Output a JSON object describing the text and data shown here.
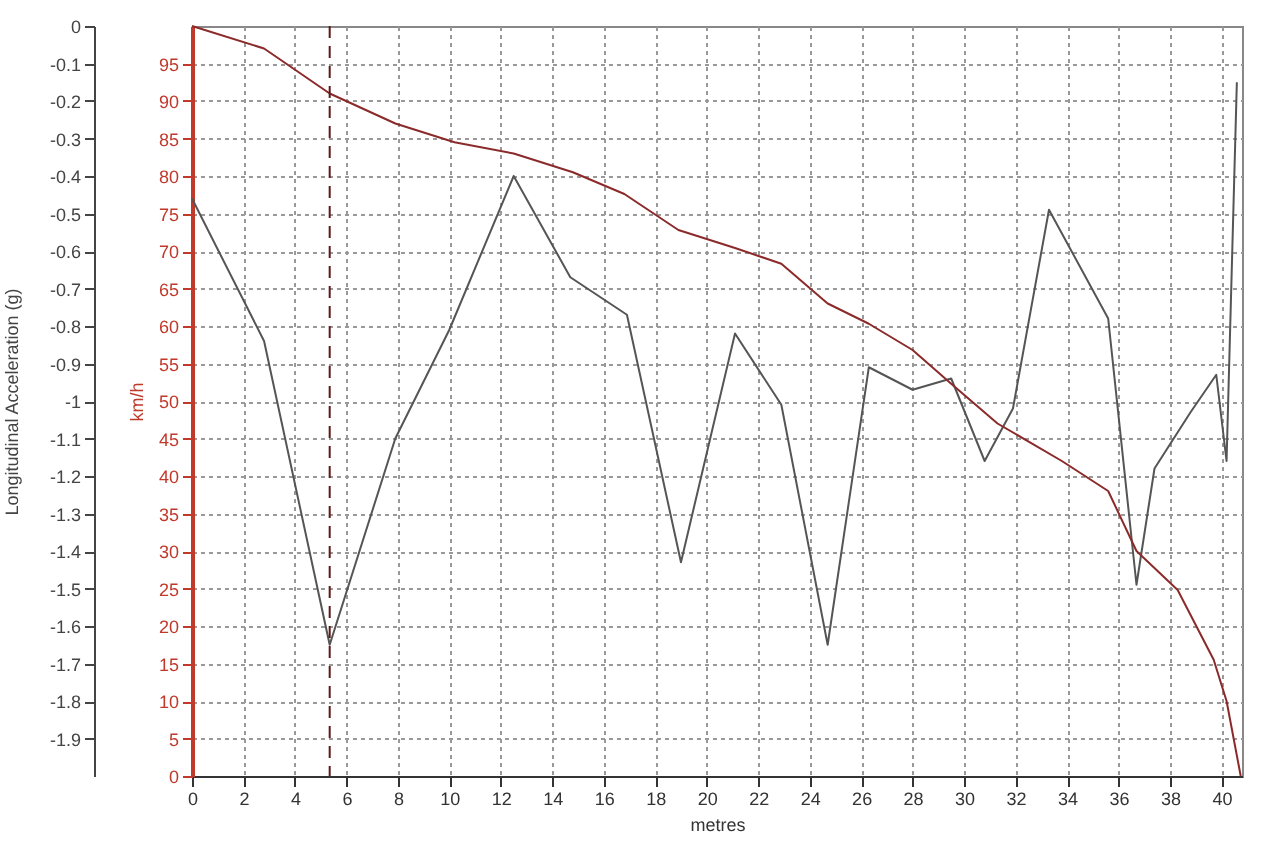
{
  "chart_data": {
    "type": "line",
    "xlabel": "metres",
    "ylabel": "Longitudinal Acceleration (g)",
    "y2label": "km/h",
    "xlim": [
      0,
      40.8
    ],
    "xticks": [
      0,
      2,
      4,
      6,
      8,
      10,
      12,
      14,
      16,
      18,
      20,
      22,
      24,
      26,
      28,
      30,
      32,
      34,
      36,
      38,
      40
    ],
    "ylim": [
      -2,
      0
    ],
    "yticks": [
      0,
      -0.1,
      -0.2,
      -0.3,
      -0.4,
      -0.5,
      -0.6,
      -0.7,
      -0.8,
      -0.9,
      -1,
      -1.1,
      -1.2,
      -1.3,
      -1.4,
      -1.5,
      -1.6,
      -1.7,
      -1.8,
      -1.9
    ],
    "y2lim": [
      0,
      100
    ],
    "y2ticks": [
      0,
      5,
      10,
      15,
      20,
      25,
      30,
      35,
      40,
      45,
      50,
      55,
      60,
      65,
      70,
      75,
      80,
      85,
      90,
      95
    ],
    "grid": true,
    "marker": "none",
    "line_style": "solid",
    "ref_lines": [
      {
        "axis": "x",
        "value": 5.35,
        "color": "#5a1a1a",
        "line_style": "dashed"
      }
    ],
    "series": [
      {
        "color": "#555555",
        "x": [
          0,
          2.8,
          5.35,
          7.9,
          10,
          12.5,
          14.7,
          16.9,
          19,
          21.1,
          22.9,
          24.7,
          26.3,
          28,
          29.5,
          30.8,
          31.9,
          33.3,
          35.6,
          36.7,
          37.4,
          38.8,
          39.8,
          40.2,
          40.6
        ],
        "values": [
          -0.46,
          -0.84,
          -1.65,
          -1.1,
          -0.81,
          -0.4,
          -0.67,
          -0.77,
          -1.43,
          -0.82,
          -1.01,
          -1.65,
          -0.91,
          -0.97,
          -0.94,
          -1.16,
          -1.02,
          -0.49,
          -0.78,
          -1.49,
          -1.18,
          -1.03,
          -0.93,
          -1.16,
          -0.15
        ]
      },
      {
        "color": "#8b2a2a",
        "axis": "y2",
        "x": [
          0,
          2.8,
          5.35,
          7.9,
          10.2,
          12.5,
          14.8,
          16.8,
          18.9,
          21.1,
          22.9,
          24.7,
          26.3,
          28,
          29.5,
          31.3,
          33.8,
          35.6,
          36.7,
          38.3,
          39.7,
          40.2,
          40.75
        ],
        "values": [
          100,
          97,
          91,
          87,
          84.5,
          83,
          80.5,
          77.6,
          72.8,
          70.4,
          68.3,
          63,
          60.3,
          56.8,
          52.3,
          47,
          42,
          38,
          30,
          24.8,
          15.5,
          10,
          0
        ]
      }
    ]
  }
}
